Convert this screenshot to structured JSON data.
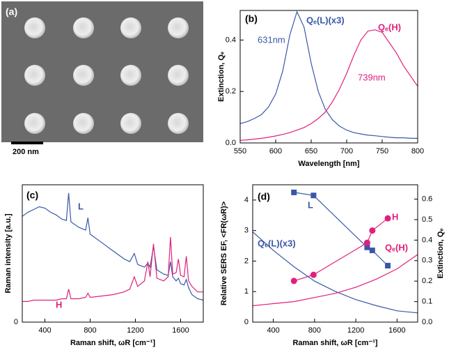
{
  "panel_a": {
    "panel_label": "(a)",
    "scale_bar": "200 nm"
  },
  "chart_data": [
    {
      "type": "line",
      "panel_label": "(b)",
      "xlabel": "Wavelength [nm]",
      "ylabel": "Extinction, Qₑ",
      "x": [
        550,
        560,
        570,
        580,
        590,
        600,
        610,
        620,
        630,
        640,
        650,
        660,
        670,
        680,
        690,
        700,
        710,
        720,
        730,
        740,
        750,
        760,
        770,
        780,
        790,
        800
      ],
      "xlim": [
        550,
        800
      ],
      "xticks": [
        550,
        600,
        650,
        700,
        750,
        800
      ],
      "ylim": [
        0,
        0.515
      ],
      "yticks": [
        {
          "value": 0,
          "label": "0.0"
        },
        0.2,
        0.4
      ],
      "annotations": [
        "631nm",
        "739nm"
      ],
      "series": [
        {
          "name": "Qₑ(L)(x3)",
          "color": "#3a57a7",
          "values": [
            0.075,
            0.083,
            0.095,
            0.11,
            0.14,
            0.19,
            0.28,
            0.42,
            0.51,
            0.45,
            0.31,
            0.2,
            0.13,
            0.09,
            0.065,
            0.05,
            0.04,
            0.035,
            0.03,
            0.028,
            0.025,
            0.022,
            0.02,
            0.02,
            0.018,
            0.018
          ]
        },
        {
          "name": "Qₑ(H)",
          "color": "#e0207a",
          "values": [
            0.01,
            0.012,
            0.015,
            0.018,
            0.022,
            0.027,
            0.033,
            0.04,
            0.05,
            0.06,
            0.075,
            0.095,
            0.12,
            0.16,
            0.21,
            0.27,
            0.34,
            0.4,
            0.435,
            0.44,
            0.43,
            0.39,
            0.35,
            0.3,
            0.26,
            0.22
          ]
        }
      ]
    },
    {
      "type": "line",
      "panel_label": "(c)",
      "xlabel": "Raman shift, ωR [cm⁻¹]",
      "ylabel": "Raman intensity [a.u.]",
      "x": [
        200,
        250,
        300,
        350,
        400,
        450,
        500,
        550,
        590,
        610,
        630,
        700,
        760,
        780,
        800,
        900,
        1000,
        1100,
        1150,
        1190,
        1220,
        1280,
        1310,
        1330,
        1360,
        1390,
        1450,
        1490,
        1510,
        1530,
        1560,
        1580,
        1600,
        1630,
        1650,
        1670,
        1700,
        1750,
        1800
      ],
      "xlim": [
        200,
        1800
      ],
      "xticks": [
        400,
        800,
        1200,
        1600
      ],
      "ylim": [
        0,
        1
      ],
      "yticks": [
        0
      ],
      "series": [
        {
          "name": "L",
          "color": "#3a57a7",
          "values": [
            0.77,
            0.8,
            0.82,
            0.84,
            0.83,
            0.8,
            0.78,
            0.75,
            0.74,
            0.94,
            0.73,
            0.69,
            0.67,
            0.76,
            0.64,
            0.58,
            0.52,
            0.46,
            0.44,
            0.5,
            0.42,
            0.4,
            0.43,
            0.4,
            0.55,
            0.38,
            0.35,
            0.34,
            0.44,
            0.33,
            0.3,
            0.32,
            0.28,
            0.27,
            0.31,
            0.25,
            0.2,
            0.17,
            0.16
          ]
        },
        {
          "name": "H",
          "color": "#e0207a",
          "values": [
            0.15,
            0.15,
            0.16,
            0.16,
            0.16,
            0.16,
            0.16,
            0.17,
            0.17,
            0.24,
            0.17,
            0.17,
            0.18,
            0.21,
            0.18,
            0.19,
            0.2,
            0.22,
            0.24,
            0.33,
            0.26,
            0.3,
            0.44,
            0.33,
            0.57,
            0.32,
            0.3,
            0.33,
            0.62,
            0.35,
            0.36,
            0.46,
            0.34,
            0.33,
            0.48,
            0.3,
            0.26,
            0.22,
            0.22
          ]
        }
      ]
    },
    {
      "type": "line",
      "panel_label": "(d)",
      "xlabel": "Raman shift, ωR [cm⁻¹]",
      "ylabel": "Relative SERS EF, <FR(ωR)>",
      "y2label": "Extinction, Qₑ",
      "xlim": [
        200,
        1800
      ],
      "xticks": [
        400,
        800,
        1200,
        1600
      ],
      "ylim": [
        0,
        4.5
      ],
      "yticks": [
        0,
        1,
        2,
        3,
        4
      ],
      "y2lim": [
        0,
        0.67
      ],
      "y2ticks": [
        {
          "value": 0,
          "label": "0.0"
        },
        0.1,
        0.2,
        0.3,
        0.4,
        0.5,
        0.6
      ],
      "series": [
        {
          "name": "L",
          "color": "#3a57a7",
          "marker": "square",
          "x": [
            600,
            790,
            1310,
            1360,
            1510
          ],
          "values": [
            4.25,
            4.15,
            2.45,
            2.35,
            1.85
          ]
        },
        {
          "name": "H",
          "color": "#e0207a",
          "marker": "circle",
          "x": [
            600,
            790,
            1310,
            1360,
            1510
          ],
          "values": [
            1.35,
            1.55,
            2.6,
            3.0,
            3.4
          ]
        },
        {
          "name": "Qₑ(L)(x3)",
          "color": "#3a57a7",
          "axis": "y2",
          "x": [
            200,
            400,
            600,
            800,
            1000,
            1200,
            1400,
            1600,
            1800
          ],
          "values": [
            0.44,
            0.35,
            0.27,
            0.2,
            0.15,
            0.11,
            0.08,
            0.055,
            0.045
          ]
        },
        {
          "name": "Qₑ(H)",
          "color": "#e0207a",
          "axis": "y2",
          "x": [
            200,
            400,
            600,
            800,
            1000,
            1200,
            1400,
            1600,
            1800
          ],
          "values": [
            0.08,
            0.09,
            0.1,
            0.12,
            0.14,
            0.17,
            0.21,
            0.26,
            0.33
          ]
        }
      ]
    }
  ]
}
